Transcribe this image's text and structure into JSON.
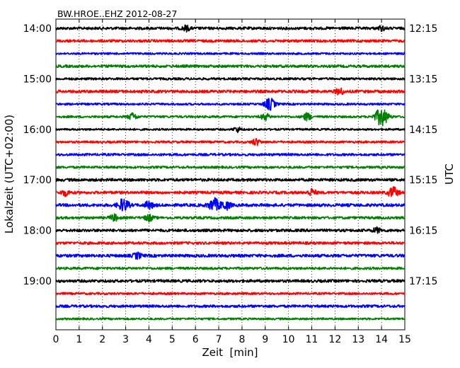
{
  "chart_data": {
    "type": "line",
    "title": "BW.HROE..EHZ 2012-08-27",
    "xlabel": "Zeit  [min]",
    "ylabel_left": "Lokalzeit (UTC+02:00)",
    "ylabel_right": "UTC",
    "xlim": [
      0,
      15
    ],
    "x_ticks": [
      "0",
      "1",
      "2",
      "3",
      "4",
      "5",
      "6",
      "7",
      "8",
      "9",
      "10",
      "11",
      "12",
      "13",
      "14",
      "15"
    ],
    "left_ticks": [
      "14:00",
      "15:00",
      "16:00",
      "17:00",
      "18:00",
      "19:00"
    ],
    "right_ticks": [
      "12:15",
      "13:15",
      "14:15",
      "15:15",
      "16:15",
      "17:15"
    ],
    "trace_interval_minutes": 15,
    "trace_count": 24,
    "trace_colors": [
      "#000000",
      "#ff0000",
      "#0000ff",
      "#008000"
    ],
    "grid": "vertical-dotted",
    "events": [
      {
        "trace": 0,
        "minute": 5.6,
        "amp": 0.35
      },
      {
        "trace": 0,
        "minute": 14.0,
        "amp": 0.3
      },
      {
        "trace": 5,
        "minute": 12.2,
        "amp": 0.45
      },
      {
        "trace": 6,
        "minute": 9.2,
        "amp": 0.8
      },
      {
        "trace": 7,
        "minute": 3.3,
        "amp": 0.5
      },
      {
        "trace": 7,
        "minute": 9.0,
        "amp": 0.45
      },
      {
        "trace": 7,
        "minute": 10.8,
        "amp": 0.5
      },
      {
        "trace": 7,
        "minute": 14.0,
        "amp": 1.25
      },
      {
        "trace": 8,
        "minute": 7.8,
        "amp": 0.35
      },
      {
        "trace": 9,
        "minute": 8.6,
        "amp": 0.45
      },
      {
        "trace": 13,
        "minute": 0.4,
        "amp": 0.4
      },
      {
        "trace": 13,
        "minute": 11.0,
        "amp": 0.45
      },
      {
        "trace": 13,
        "minute": 14.5,
        "amp": 0.7
      },
      {
        "trace": 14,
        "minute": 2.9,
        "amp": 0.85
      },
      {
        "trace": 14,
        "minute": 4.0,
        "amp": 0.5
      },
      {
        "trace": 14,
        "minute": 6.8,
        "amp": 0.9
      },
      {
        "trace": 14,
        "minute": 7.3,
        "amp": 0.6
      },
      {
        "trace": 15,
        "minute": 2.5,
        "amp": 0.45
      },
      {
        "trace": 15,
        "minute": 4.0,
        "amp": 0.45
      },
      {
        "trace": 16,
        "minute": 13.8,
        "amp": 0.35
      },
      {
        "trace": 18,
        "minute": 3.5,
        "amp": 0.4
      }
    ]
  }
}
